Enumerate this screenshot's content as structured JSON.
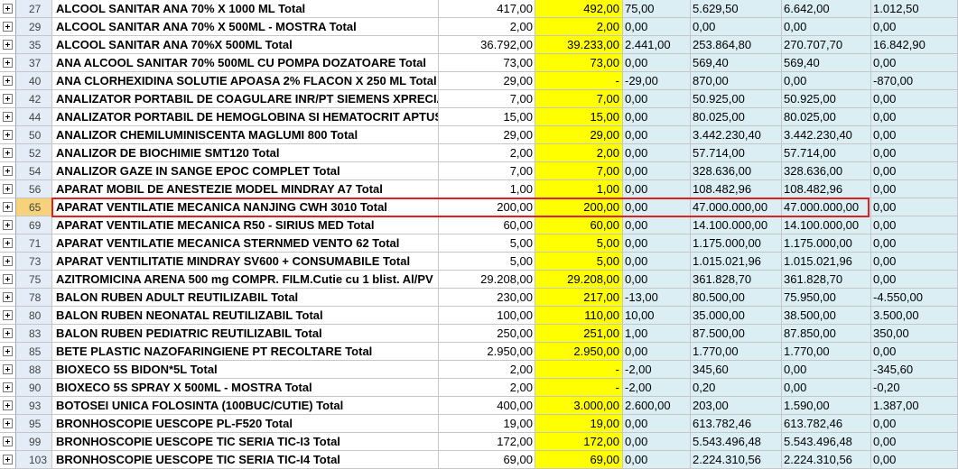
{
  "rows": [
    {
      "num": "27",
      "desc": "ALCOOL SANITAR ANA 70% X 1000 ML Total",
      "q1": "417,00",
      "q2": "492,00",
      "d": "75,00",
      "v1": "5.629,50",
      "v2": "6.642,00",
      "v3": "1.012,50"
    },
    {
      "num": "29",
      "desc": "ALCOOL SANITAR ANA 70% X 500ML - MOSTRA Total",
      "q1": "2,00",
      "q2": "2,00",
      "d": "0,00",
      "v1": "0,00",
      "v2": "0,00",
      "v3": "0,00"
    },
    {
      "num": "35",
      "desc": "ALCOOL SANITAR ANA 70%X 500ML Total",
      "q1": "36.792,00",
      "q2": "39.233,00",
      "d": "2.441,00",
      "v1": "253.864,80",
      "v2": "270.707,70",
      "v3": "16.842,90"
    },
    {
      "num": "37",
      "desc": "ANA ALCOOL SANITAR 70% 500ML CU POMPA DOZATOARE Total",
      "q1": "73,00",
      "q2": "73,00",
      "d": "0,00",
      "v1": "569,40",
      "v2": "569,40",
      "v3": "0,00"
    },
    {
      "num": "40",
      "desc": "ANA CLORHEXIDINA SOLUTIE APOASA 2% FLACON X 250 ML Total",
      "q1": "29,00",
      "q2": "-",
      "d": "-29,00",
      "v1": "870,00",
      "v2": "0,00",
      "v3": "-870,00"
    },
    {
      "num": "42",
      "desc": "ANALIZATOR PORTABIL DE COAGULARE INR/PT SIEMENS XPRECIA",
      "q1": "7,00",
      "q2": "7,00",
      "d": "0,00",
      "v1": "50.925,00",
      "v2": "50.925,00",
      "v3": "0,00"
    },
    {
      "num": "44",
      "desc": "ANALIZATOR PORTABIL DE HEMOGLOBINA SI HEMATOCRIT APTUS",
      "q1": "15,00",
      "q2": "15,00",
      "d": "0,00",
      "v1": "80.025,00",
      "v2": "80.025,00",
      "v3": "0,00"
    },
    {
      "num": "50",
      "desc": "ANALIZOR CHEMILUMINISCENTA MAGLUMI 800 Total",
      "q1": "29,00",
      "q2": "29,00",
      "d": "0,00",
      "v1": "3.442.230,40",
      "v2": "3.442.230,40",
      "v3": "0,00"
    },
    {
      "num": "52",
      "desc": "ANALIZOR DE BIOCHIMIE SMT120 Total",
      "q1": "2,00",
      "q2": "2,00",
      "d": "0,00",
      "v1": "57.714,00",
      "v2": "57.714,00",
      "v3": "0,00"
    },
    {
      "num": "54",
      "desc": "ANALIZOR GAZE IN SANGE EPOC COMPLET Total",
      "q1": "7,00",
      "q2": "7,00",
      "d": "0,00",
      "v1": "328.636,00",
      "v2": "328.636,00",
      "v3": "0,00"
    },
    {
      "num": "56",
      "desc": "APARAT MOBIL DE ANESTEZIE MODEL MINDRAY A7 Total",
      "q1": "1,00",
      "q2": "1,00",
      "d": "0,00",
      "v1": "108.482,96",
      "v2": "108.482,96",
      "v3": "0,00"
    },
    {
      "num": "65",
      "desc": "APARAT VENTILATIE MECANICA NANJING CWH 3010 Total",
      "q1": "200,00",
      "q2": "200,00",
      "d": "0,00",
      "v1": "47.000.000,00",
      "v2": "47.000.000,00",
      "v3": "0,00",
      "selected": true
    },
    {
      "num": "69",
      "desc": "APARAT VENTILATIE MECANICA R50 - SIRIUS MED Total",
      "q1": "60,00",
      "q2": "60,00",
      "d": "0,00",
      "v1": "14.100.000,00",
      "v2": "14.100.000,00",
      "v3": "0,00"
    },
    {
      "num": "71",
      "desc": "APARAT VENTILATIE MECANICA STERNMED VENTO 62 Total",
      "q1": "5,00",
      "q2": "5,00",
      "d": "0,00",
      "v1": "1.175.000,00",
      "v2": "1.175.000,00",
      "v3": "0,00"
    },
    {
      "num": "73",
      "desc": "APARAT VENTILITATIE MINDRAY SV600 + CONSUMABILE Total",
      "q1": "5,00",
      "q2": "5,00",
      "d": "0,00",
      "v1": "1.015.021,96",
      "v2": "1.015.021,96",
      "v3": "0,00"
    },
    {
      "num": "75",
      "desc": "AZITROMICINA ARENA 500 mg COMPR. FILM.Cutie cu 1 blist. Al/PV",
      "q1": "29.208,00",
      "q2": "29.208,00",
      "d": "0,00",
      "v1": "361.828,70",
      "v2": "361.828,70",
      "v3": "0,00"
    },
    {
      "num": "78",
      "desc": "BALON RUBEN ADULT REUTILIZABIL Total",
      "q1": "230,00",
      "q2": "217,00",
      "d": "-13,00",
      "v1": "80.500,00",
      "v2": "75.950,00",
      "v3": "-4.550,00"
    },
    {
      "num": "80",
      "desc": "BALON RUBEN NEONATAL REUTILIZABIL Total",
      "q1": "100,00",
      "q2": "110,00",
      "d": "10,00",
      "v1": "35.000,00",
      "v2": "38.500,00",
      "v3": "3.500,00"
    },
    {
      "num": "83",
      "desc": "BALON RUBEN PEDIATRIC REUTILIZABIL Total",
      "q1": "250,00",
      "q2": "251,00",
      "d": "1,00",
      "v1": "87.500,00",
      "v2": "87.850,00",
      "v3": "350,00"
    },
    {
      "num": "85",
      "desc": "BETE PLASTIC NAZOFARINGIENE PT RECOLTARE Total",
      "q1": "2.950,00",
      "q2": "2.950,00",
      "d": "0,00",
      "v1": "1.770,00",
      "v2": "1.770,00",
      "v3": "0,00"
    },
    {
      "num": "88",
      "desc": "BIOXECO 5S BIDON*5L Total",
      "q1": "2,00",
      "q2": "-",
      "d": "-2,00",
      "v1": "345,60",
      "v2": "0,00",
      "v3": "-345,60"
    },
    {
      "num": "90",
      "desc": "BIOXECO 5S SPRAY X 500ML - MOSTRA Total",
      "q1": "2,00",
      "q2": "-",
      "d": "-2,00",
      "v1": "0,20",
      "v2": "0,00",
      "v3": "-0,20"
    },
    {
      "num": "93",
      "desc": "BOTOSEI UNICA FOLOSINTA (100BUC/CUTIE) Total",
      "q1": "400,00",
      "q2": "3.000,00",
      "d": "2.600,00",
      "v1": "203,00",
      "v2": "1.590,00",
      "v3": "1.387,00"
    },
    {
      "num": "95",
      "desc": "BRONHOSCOPIE UESCOPE PL-F520 Total",
      "q1": "19,00",
      "q2": "19,00",
      "d": "0,00",
      "v1": "613.782,46",
      "v2": "613.782,46",
      "v3": "0,00"
    },
    {
      "num": "99",
      "desc": "BRONHOSCOPIE UESCOPE TIC SERIA TIC-I3 Total",
      "q1": "172,00",
      "q2": "172,00",
      "d": "0,00",
      "v1": "5.543.496,48",
      "v2": "5.543.496,48",
      "v3": "0,00"
    },
    {
      "num": "103",
      "desc": "BRONHOSCOPIE UESCOPE TIC SERIA TIC-I4 Total",
      "q1": "69,00",
      "q2": "69,00",
      "d": "0,00",
      "v1": "2.224.310,56",
      "v2": "2.224.310,56",
      "v3": "0,00"
    }
  ]
}
